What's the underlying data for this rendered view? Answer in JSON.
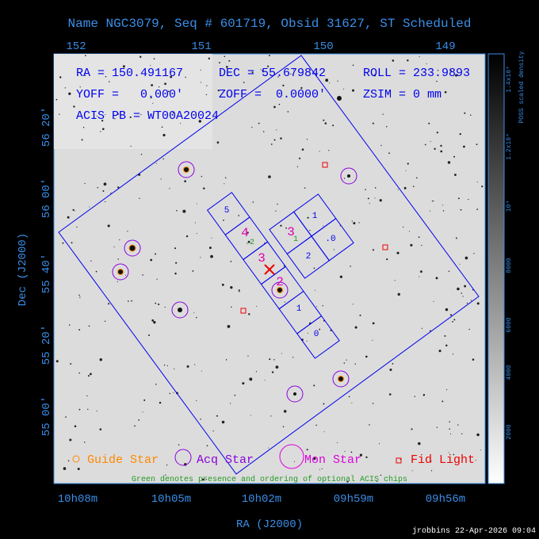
{
  "title": "Name NGC3079, Seq # 601719, Obsid 31627, ST Scheduled",
  "top_axis_ticks": [
    "152",
    "151",
    "150",
    "149"
  ],
  "bottom_axis_ticks": [
    "10h08m",
    "10h05m",
    "10h02m",
    "09h59m",
    "09h56m"
  ],
  "left_axis_ticks": [
    "56 20'",
    "56 00'",
    "55 40'",
    "55 20'",
    "55 00'"
  ],
  "x_label": "RA (J2000)",
  "y_label": "Dec (J2000)",
  "info": {
    "ra": "RA = 150.491167",
    "dec": "DEC = 55.679842",
    "roll": "ROLL = 233.9893",
    "yoff": "YOFF =   0.000'",
    "zoff": "ZOFF =  0.0000'",
    "zsim": "ZSIM = 0 mm",
    "acis": "ACIS PB = WT00A20024"
  },
  "chips": [
    "5",
    "4",
    ".2",
    "3",
    "2",
    "1",
    "0",
    "1",
    "3",
    "1",
    ".0",
    "2"
  ],
  "legend": [
    "Guide Star",
    "Acq Star",
    "Mon Star",
    "Fid Light"
  ],
  "note": "Green denotes presence and ordering of optional ACIS chips",
  "colorbar": {
    "label": "POSS scaled density",
    "ticks": [
      "1.4x10⁴",
      "1.2x10⁴",
      "10⁴",
      "8000",
      "6000",
      "4000",
      "2000"
    ]
  },
  "footer": "jrobbins 22-Apr-2026 09:04"
}
